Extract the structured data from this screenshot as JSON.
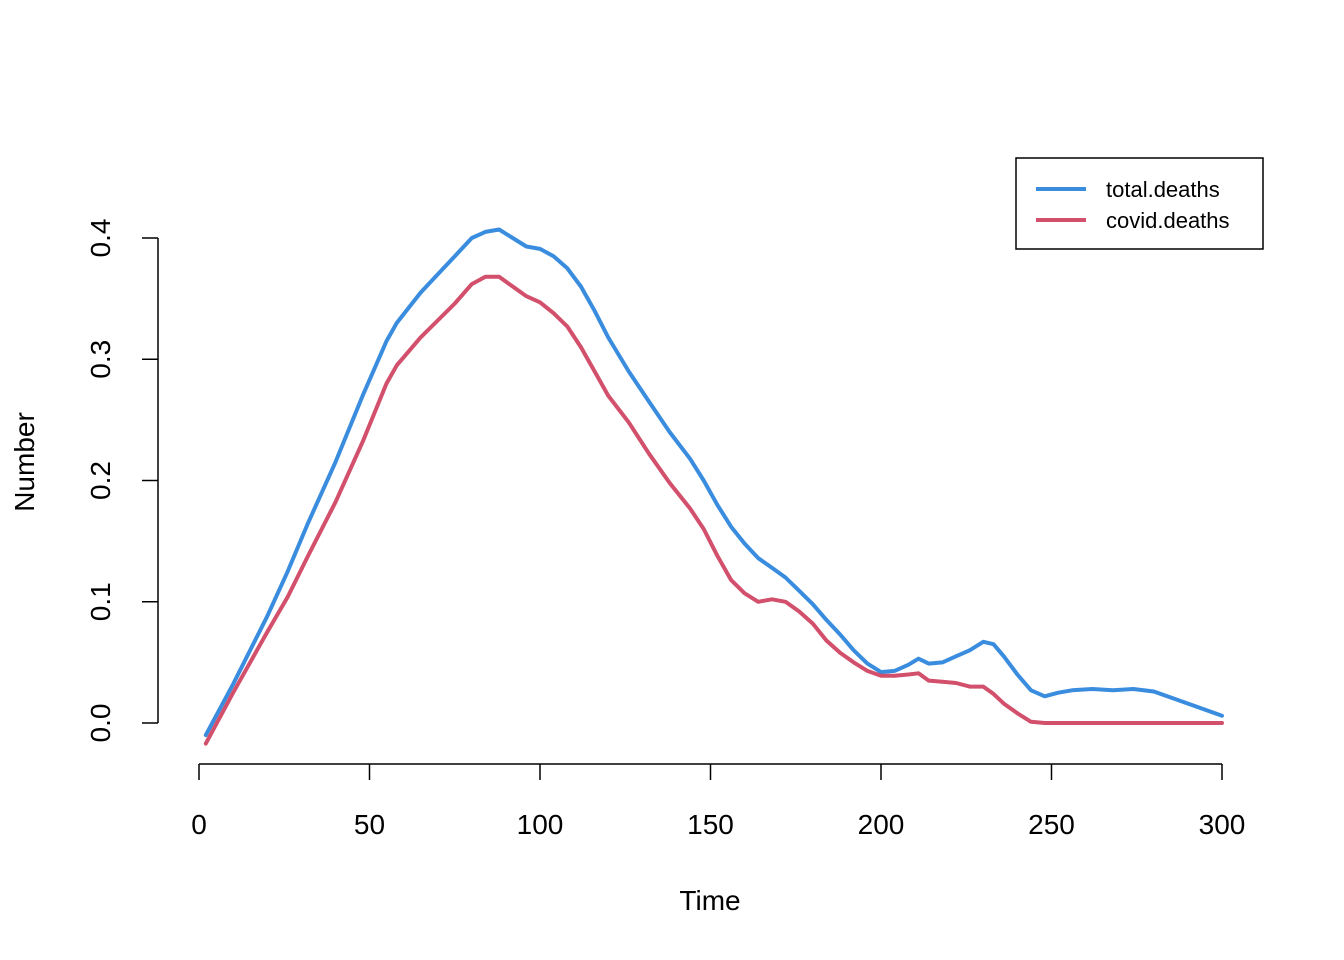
{
  "chart_data": {
    "type": "line",
    "title": "",
    "xlabel": "Time",
    "ylabel": "Number",
    "xlim": [
      0,
      300
    ],
    "ylim": [
      0,
      0.4
    ],
    "x_ticks": [
      "0",
      "50",
      "100",
      "150",
      "200",
      "250",
      "300"
    ],
    "y_ticks": [
      "0.0",
      "0.1",
      "0.2",
      "0.3",
      "0.4"
    ],
    "grid": false,
    "legend": {
      "position": "top-right",
      "entries": [
        "total.deaths",
        "covid.deaths"
      ]
    },
    "series": [
      {
        "name": "total.deaths",
        "color": "#3A8DDE",
        "points": [
          [
            2,
            -0.01
          ],
          [
            10,
            0.032
          ],
          [
            20,
            0.088
          ],
          [
            26,
            0.125
          ],
          [
            32,
            0.165
          ],
          [
            40,
            0.215
          ],
          [
            48,
            0.27
          ],
          [
            55,
            0.315
          ],
          [
            58,
            0.33
          ],
          [
            65,
            0.355
          ],
          [
            70,
            0.37
          ],
          [
            75,
            0.385
          ],
          [
            80,
            0.4
          ],
          [
            84,
            0.405
          ],
          [
            88,
            0.407
          ],
          [
            92,
            0.4
          ],
          [
            96,
            0.393
          ],
          [
            100,
            0.391
          ],
          [
            104,
            0.385
          ],
          [
            108,
            0.375
          ],
          [
            112,
            0.36
          ],
          [
            116,
            0.34
          ],
          [
            120,
            0.318
          ],
          [
            126,
            0.29
          ],
          [
            132,
            0.265
          ],
          [
            138,
            0.24
          ],
          [
            144,
            0.218
          ],
          [
            148,
            0.2
          ],
          [
            152,
            0.18
          ],
          [
            156,
            0.162
          ],
          [
            160,
            0.148
          ],
          [
            164,
            0.136
          ],
          [
            168,
            0.128
          ],
          [
            172,
            0.12
          ],
          [
            176,
            0.109
          ],
          [
            180,
            0.098
          ],
          [
            184,
            0.085
          ],
          [
            188,
            0.073
          ],
          [
            192,
            0.06
          ],
          [
            196,
            0.049
          ],
          [
            200,
            0.042
          ],
          [
            204,
            0.043
          ],
          [
            208,
            0.048
          ],
          [
            211,
            0.053
          ],
          [
            214,
            0.049
          ],
          [
            218,
            0.05
          ],
          [
            222,
            0.055
          ],
          [
            226,
            0.06
          ],
          [
            230,
            0.067
          ],
          [
            233,
            0.065
          ],
          [
            236,
            0.055
          ],
          [
            240,
            0.04
          ],
          [
            244,
            0.027
          ],
          [
            248,
            0.022
          ],
          [
            252,
            0.025
          ],
          [
            256,
            0.027
          ],
          [
            262,
            0.028
          ],
          [
            268,
            0.027
          ],
          [
            274,
            0.028
          ],
          [
            280,
            0.026
          ],
          [
            286,
            0.02
          ],
          [
            292,
            0.014
          ],
          [
            300,
            0.006
          ]
        ]
      },
      {
        "name": "covid.deaths",
        "color": "#D2506C",
        "points": [
          [
            2,
            -0.017
          ],
          [
            10,
            0.025
          ],
          [
            20,
            0.075
          ],
          [
            26,
            0.104
          ],
          [
            32,
            0.138
          ],
          [
            40,
            0.182
          ],
          [
            48,
            0.232
          ],
          [
            55,
            0.28
          ],
          [
            58,
            0.295
          ],
          [
            65,
            0.318
          ],
          [
            70,
            0.332
          ],
          [
            75,
            0.346
          ],
          [
            80,
            0.362
          ],
          [
            84,
            0.368
          ],
          [
            88,
            0.368
          ],
          [
            92,
            0.36
          ],
          [
            96,
            0.352
          ],
          [
            100,
            0.347
          ],
          [
            104,
            0.338
          ],
          [
            108,
            0.327
          ],
          [
            112,
            0.31
          ],
          [
            116,
            0.29
          ],
          [
            120,
            0.27
          ],
          [
            126,
            0.248
          ],
          [
            132,
            0.222
          ],
          [
            138,
            0.198
          ],
          [
            144,
            0.177
          ],
          [
            148,
            0.16
          ],
          [
            152,
            0.138
          ],
          [
            156,
            0.118
          ],
          [
            160,
            0.107
          ],
          [
            164,
            0.1
          ],
          [
            168,
            0.102
          ],
          [
            172,
            0.1
          ],
          [
            176,
            0.092
          ],
          [
            180,
            0.082
          ],
          [
            184,
            0.068
          ],
          [
            188,
            0.058
          ],
          [
            192,
            0.05
          ],
          [
            196,
            0.043
          ],
          [
            200,
            0.039
          ],
          [
            204,
            0.039
          ],
          [
            208,
            0.04
          ],
          [
            211,
            0.041
          ],
          [
            214,
            0.035
          ],
          [
            218,
            0.034
          ],
          [
            222,
            0.033
          ],
          [
            226,
            0.03
          ],
          [
            230,
            0.03
          ],
          [
            233,
            0.024
          ],
          [
            236,
            0.016
          ],
          [
            240,
            0.008
          ],
          [
            244,
            0.001
          ],
          [
            248,
            0.0
          ],
          [
            256,
            0.0
          ],
          [
            270,
            0.0
          ],
          [
            285,
            0.0
          ],
          [
            300,
            0.0
          ]
        ]
      }
    ]
  }
}
